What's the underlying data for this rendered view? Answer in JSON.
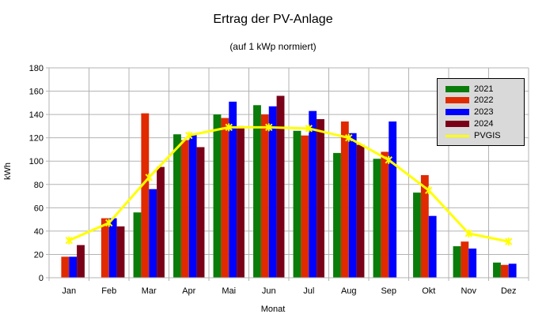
{
  "chart_data": {
    "type": "bar",
    "title": "Ertrag der PV-Anlage",
    "subtitle": "(auf 1 kWp normiert)",
    "xlabel": "Monat",
    "ylabel": "kWh",
    "ylim": [
      0,
      180
    ],
    "yticks": [
      "0",
      "20",
      "40",
      "60",
      "80",
      "100",
      "120",
      "140",
      "160",
      "180"
    ],
    "categories": [
      "Jan",
      "Feb",
      "Mar",
      "Apr",
      "Mai",
      "Jun",
      "Jul",
      "Aug",
      "Sep",
      "Okt",
      "Nov",
      "Dez"
    ],
    "grid": true,
    "legend_position": "top-right",
    "series": [
      {
        "name": "2021",
        "type": "bar",
        "color": "#0a7c0a",
        "values": [
          null,
          null,
          56,
          123,
          140,
          148,
          126,
          107,
          102,
          73,
          27,
          13
        ]
      },
      {
        "name": "2022",
        "type": "bar",
        "color": "#e02a00",
        "values": [
          18,
          51,
          141,
          118,
          137,
          140,
          122,
          134,
          108,
          88,
          31,
          11
        ]
      },
      {
        "name": "2023",
        "type": "bar",
        "color": "#0000ff",
        "values": [
          18,
          51,
          76,
          123,
          151,
          147,
          143,
          124,
          134,
          53,
          25,
          12
        ]
      },
      {
        "name": "2024",
        "type": "bar",
        "color": "#7a0018",
        "values": [
          28,
          44,
          95,
          112,
          130,
          156,
          136,
          114,
          null,
          null,
          null,
          null
        ]
      },
      {
        "name": "PVGIS",
        "type": "line",
        "color": "#ffff00",
        "values": [
          32,
          47,
          86,
          122,
          129,
          129,
          128,
          120,
          101,
          75,
          38,
          31
        ]
      }
    ]
  }
}
